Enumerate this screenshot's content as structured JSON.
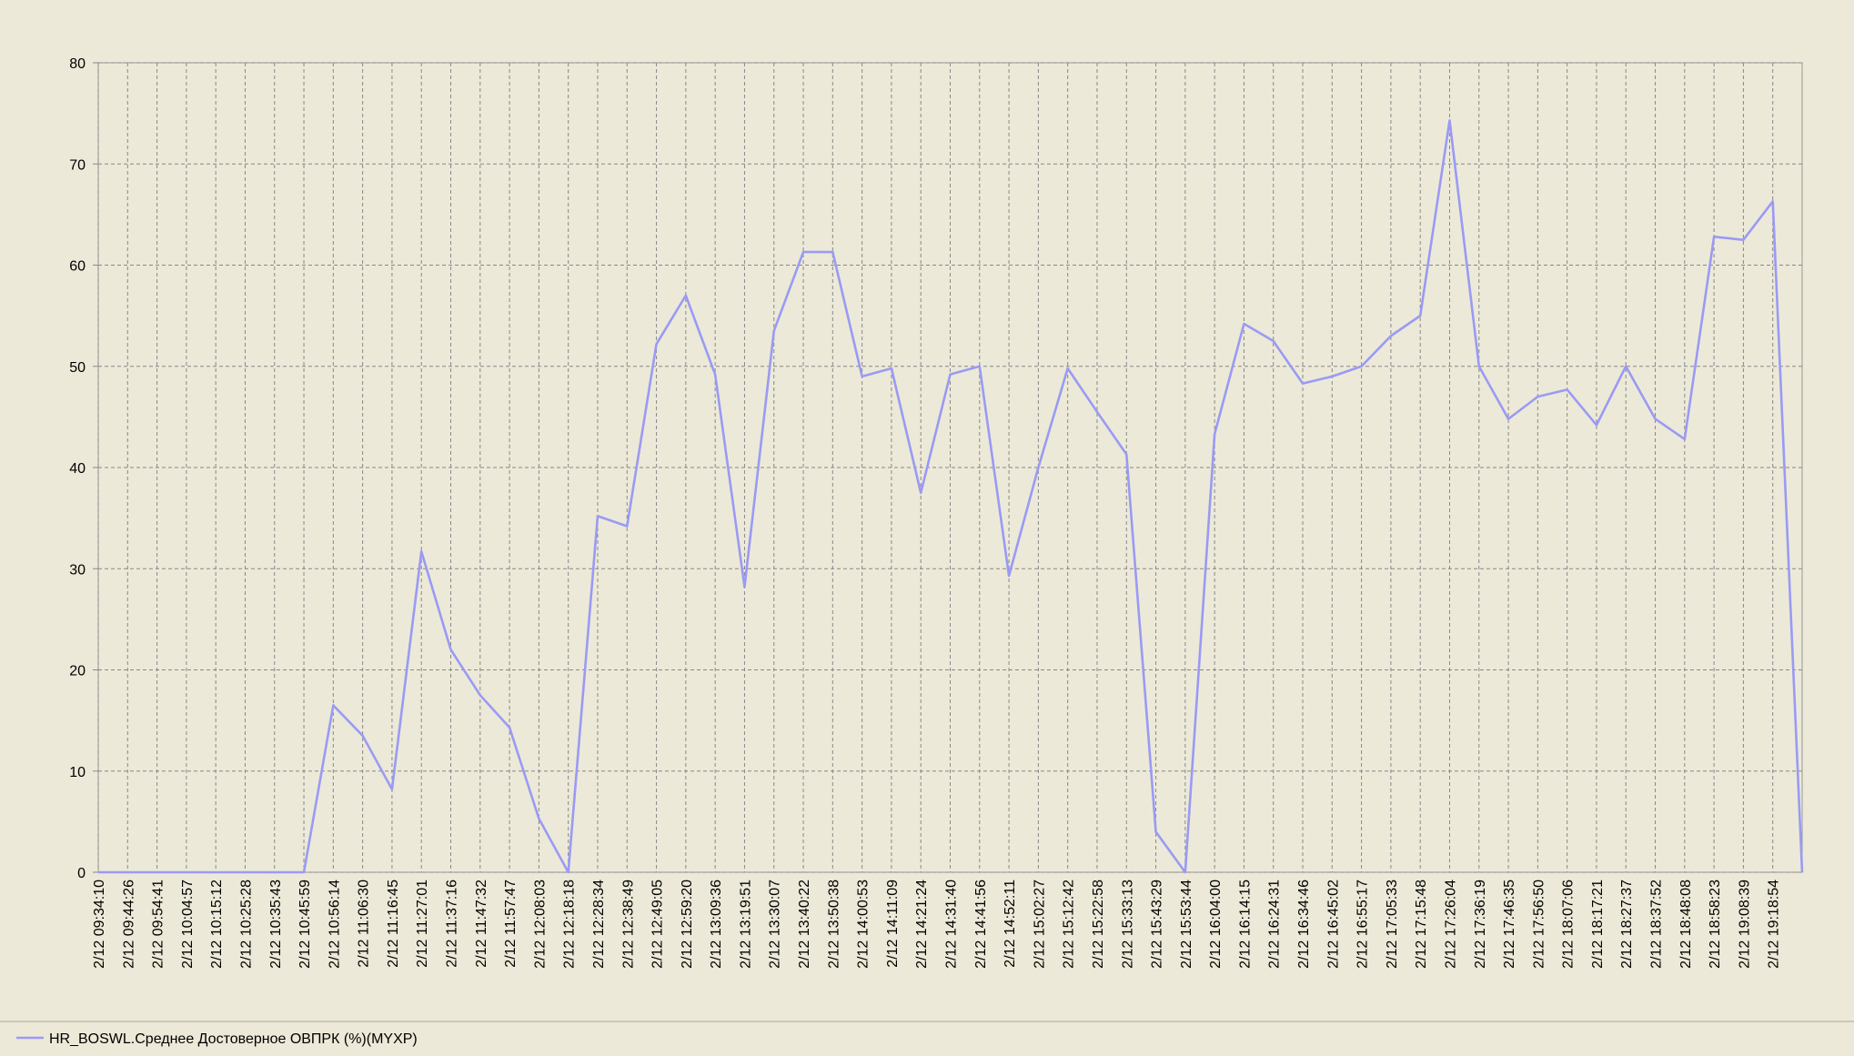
{
  "chart_data": {
    "type": "line",
    "categories": [
      "2/12 09:34:10",
      "2/12 09:44:26",
      "2/12 09:54:41",
      "2/12 10:04:57",
      "2/12 10:15:12",
      "2/12 10:25:28",
      "2/12 10:35:43",
      "2/12 10:45:59",
      "2/12 10:56:14",
      "2/12 11:06:30",
      "2/12 11:16:45",
      "2/12 11:27:01",
      "2/12 11:37:16",
      "2/12 11:47:32",
      "2/12 11:57:47",
      "2/12 12:08:03",
      "2/12 12:18:18",
      "2/12 12:28:34",
      "2/12 12:38:49",
      "2/12 12:49:05",
      "2/12 12:59:20",
      "2/12 13:09:36",
      "2/12 13:19:51",
      "2/12 13:30:07",
      "2/12 13:40:22",
      "2/12 13:50:38",
      "2/12 14:00:53",
      "2/12 14:11:09",
      "2/12 14:21:24",
      "2/12 14:31:40",
      "2/12 14:41:56",
      "2/12 14:52:11",
      "2/12 15:02:27",
      "2/12 15:12:42",
      "2/12 15:22:58",
      "2/12 15:33:13",
      "2/12 15:43:29",
      "2/12 15:53:44",
      "2/12 16:04:00",
      "2/12 16:14:15",
      "2/12 16:24:31",
      "2/12 16:34:46",
      "2/12 16:45:02",
      "2/12 16:55:17",
      "2/12 17:05:33",
      "2/12 17:15:48",
      "2/12 17:26:04",
      "2/12 17:36:19",
      "2/12 17:46:35",
      "2/12 17:56:50",
      "2/12 18:07:06",
      "2/12 18:17:21",
      "2/12 18:27:37",
      "2/12 18:37:52",
      "2/12 18:48:08",
      "2/12 18:58:23",
      "2/12 19:08:39",
      "2/12 19:18:54",
      null
    ],
    "series": [
      {
        "name": "HR_BOSWL.Среднее Достоверное ОВПРК (%)(MYXP)",
        "color": "#9a9af5",
        "values": [
          0,
          0,
          0,
          0,
          0,
          0,
          0,
          0,
          16.5,
          13.5,
          8.2,
          31.7,
          22,
          17.5,
          14.3,
          5.3,
          0,
          35.2,
          34.2,
          52.2,
          57,
          49.2,
          28.2,
          53.5,
          61.3,
          61.3,
          49,
          49.8,
          37.5,
          49.2,
          50,
          29.3,
          40,
          49.8,
          45.5,
          41.3,
          4,
          0,
          43.3,
          54.2,
          52.5,
          48.3,
          49,
          50,
          53,
          55,
          74.3,
          50,
          44.8,
          47,
          47.7,
          44.2,
          50,
          44.8,
          42.8,
          62.8,
          62.5,
          66.3,
          0
        ]
      }
    ],
    "ylim": [
      0,
      80
    ],
    "yticks": [
      0,
      10,
      20,
      30,
      40,
      50,
      60,
      70,
      80
    ],
    "grid": true,
    "legend": "bottom-left"
  }
}
